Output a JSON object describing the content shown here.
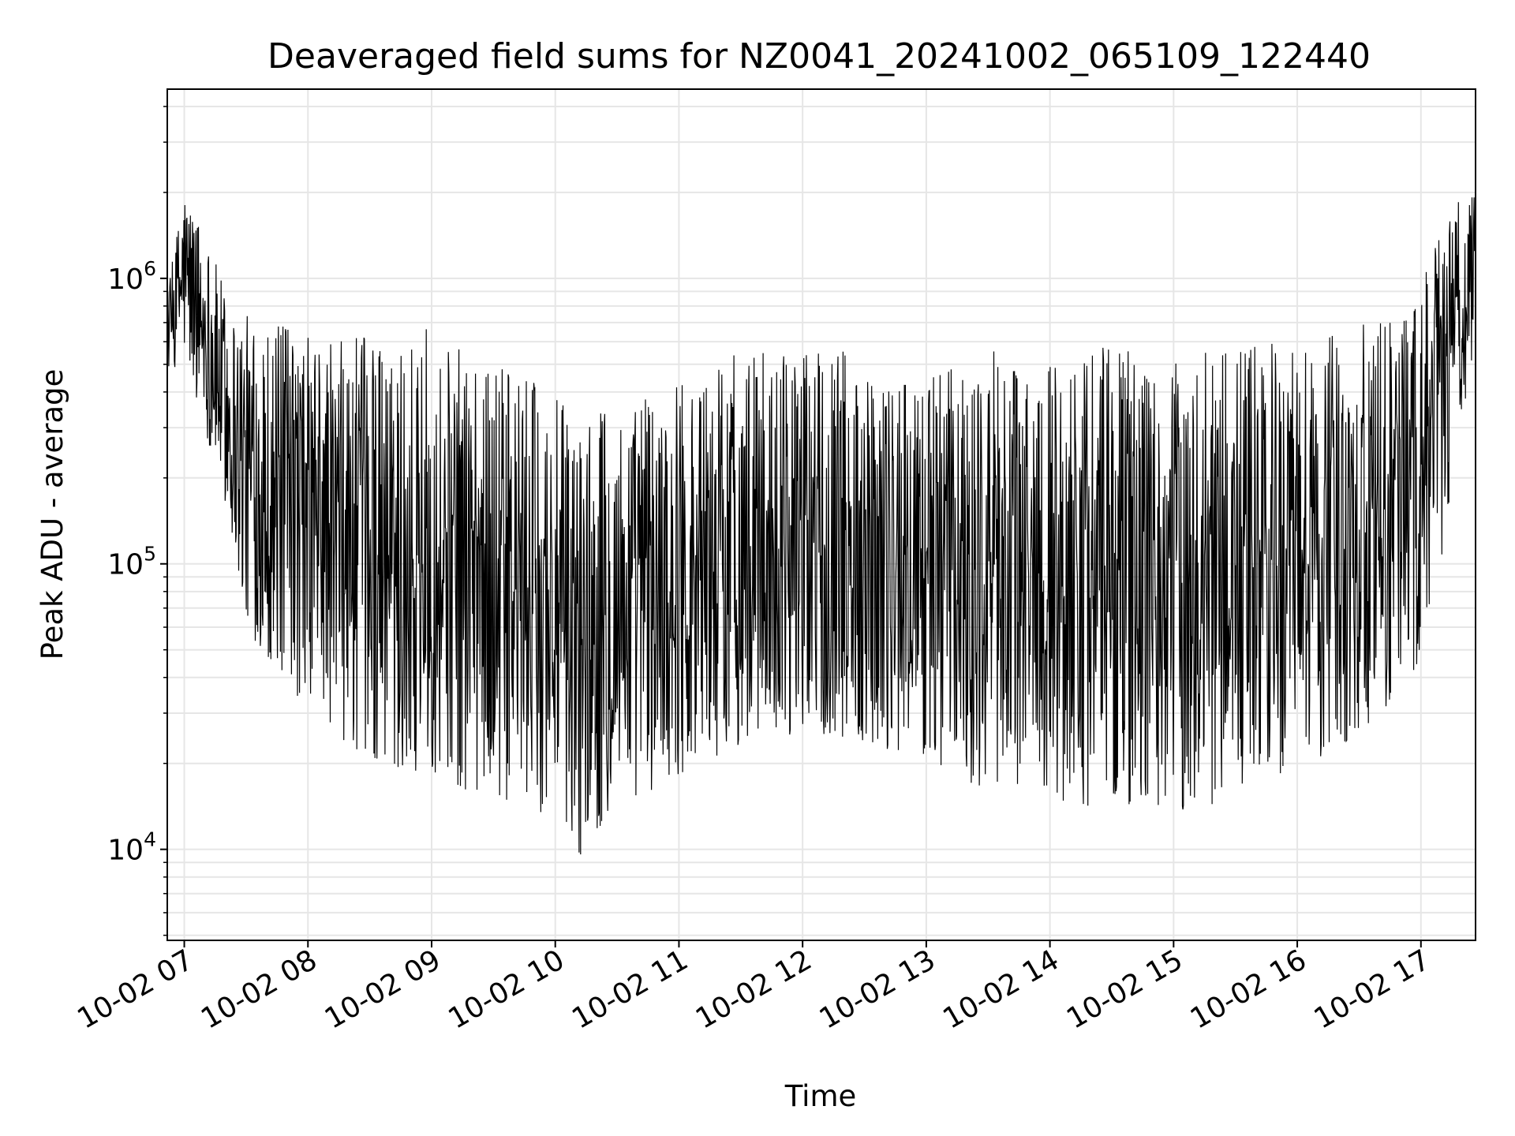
{
  "chart_data": {
    "type": "line",
    "title": "Deaveraged field sums for NZ0041_20241002_065109_122440",
    "xlabel": "Time",
    "ylabel": "Peak ADU - average",
    "yscale": "log",
    "ylim": [
      4800,
      4600000
    ],
    "xlim": [
      "10-02 06:51:45",
      "10-02 17:26:30"
    ],
    "grid": true,
    "legend": "none",
    "line_color": "#000000",
    "x_ticks": [
      "10-02 07",
      "10-02 08",
      "10-02 09",
      "10-02 10",
      "10-02 11",
      "10-02 12",
      "10-02 13",
      "10-02 14",
      "10-02 15",
      "10-02 16",
      "10-02 17"
    ],
    "y_ticks": [
      {
        "base": "10",
        "exp": "4",
        "value": 10000
      },
      {
        "base": "10",
        "exp": "5",
        "value": 100000
      },
      {
        "base": "10",
        "exp": "6",
        "value": 1000000
      }
    ],
    "series": [
      {
        "x": [
          "10-02 06:52",
          "10-02 07:00",
          "10-02 07:10",
          "10-02 07:20",
          "10-02 07:30",
          "10-02 07:45",
          "10-02 08:00",
          "10-02 08:15",
          "10-02 08:30",
          "10-02 08:45",
          "10-02 09:00",
          "10-02 09:15",
          "10-02 09:30",
          "10-02 09:45",
          "10-02 10:00",
          "10-02 10:10",
          "10-02 10:20",
          "10-02 10:30",
          "10-02 10:45",
          "10-02 11:00",
          "10-02 11:15",
          "10-02 11:30",
          "10-02 11:45",
          "10-02 12:00",
          "10-02 12:15",
          "10-02 12:30",
          "10-02 12:45",
          "10-02 13:00",
          "10-02 13:15",
          "10-02 13:30",
          "10-02 13:45",
          "10-02 14:00",
          "10-02 14:15",
          "10-02 14:30",
          "10-02 14:45",
          "10-02 15:00",
          "10-02 15:15",
          "10-02 15:30",
          "10-02 15:45",
          "10-02 16:00",
          "10-02 16:15",
          "10-02 16:30",
          "10-02 16:45",
          "10-02 17:00",
          "10-02 17:10",
          "10-02 17:20",
          "10-02 17:26"
        ],
        "high": [
          900000,
          2200000,
          1500000,
          900000,
          750000,
          700000,
          650000,
          600000,
          650000,
          600000,
          700000,
          550000,
          500000,
          450000,
          400000,
          300000,
          350000,
          350000,
          400000,
          450000,
          500000,
          550000,
          550000,
          550000,
          600000,
          550000,
          500000,
          450000,
          500000,
          550000,
          600000,
          550000,
          600000,
          600000,
          550000,
          500000,
          550000,
          600000,
          600000,
          600000,
          650000,
          700000,
          700000,
          1000000,
          1500000,
          2200000,
          2000000
        ],
        "low": [
          450000,
          500000,
          300000,
          150000,
          60000,
          40000,
          30000,
          25000,
          20000,
          18000,
          18000,
          16000,
          15000,
          14000,
          13000,
          9000,
          11000,
          15000,
          15000,
          18000,
          20000,
          22000,
          25000,
          25000,
          25000,
          22000,
          22000,
          20000,
          18000,
          16000,
          16000,
          15000,
          14000,
          14000,
          14000,
          13000,
          14000,
          15000,
          16000,
          18000,
          20000,
          25000,
          30000,
          40000,
          100000,
          300000,
          600000
        ]
      }
    ]
  }
}
